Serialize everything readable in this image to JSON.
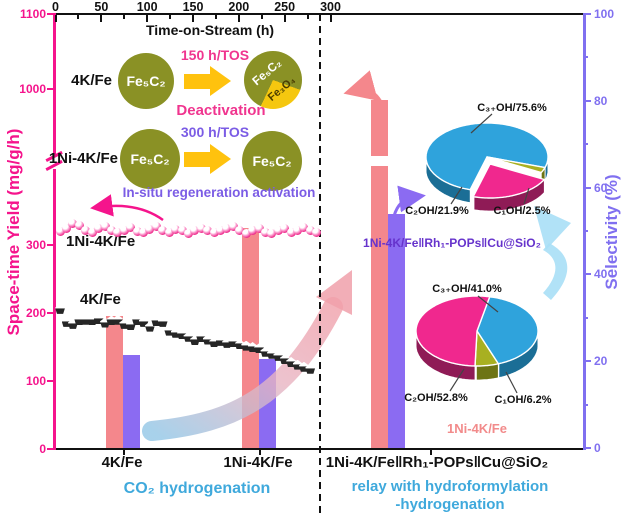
{
  "captions": {
    "co2": "CO₂ hydrogenation",
    "relay_line1": "relay with hydroformylation",
    "relay_line2": "-hydrogenation",
    "caption_color": "#3FA9DC"
  },
  "inset": {
    "rows": [
      {
        "catalyst": "4K/Fe",
        "phase_start": "Fe₅C₂",
        "tos": "150 h/TOS",
        "caption": "Deactivation",
        "phase_end": "Fe₅C₂",
        "phase_end_minor": "Fe₃O₄",
        "accent": "#F0358F"
      },
      {
        "catalyst": "1Ni-4K/Fe",
        "phase_start": "Fe₅C₂",
        "tos": "300 h/TOS",
        "caption": "In-situ regeneration activation",
        "phase_end": "Fe₅C₂",
        "accent": "#7B5CE5"
      }
    ],
    "particle_color": "#8A9125",
    "arrow_color": "#FFC20E"
  },
  "chart_data": {
    "type": "composite",
    "left_axis": {
      "title": "Space-time Yield (mg/g/h)",
      "color": "#F5148C",
      "ticks": [
        0,
        100,
        200,
        300,
        1000,
        1100
      ],
      "break_between": [
        300,
        1000
      ]
    },
    "right_axis": {
      "title": "Selectivity (%)",
      "color": "#8070F0",
      "ticks": [
        0,
        20,
        40,
        60,
        80,
        100
      ]
    },
    "top_axis": {
      "title": "Time-on-Stream (h)",
      "ticks": [
        0,
        50,
        100,
        150,
        200,
        250,
        300
      ]
    },
    "scatter": [
      {
        "name": "1Ni-4K/Fe",
        "marker": "pink-sphere",
        "axis": "left",
        "t_h": [
          5,
          12,
          19,
          26,
          33,
          40,
          47,
          54,
          61,
          68,
          75,
          82,
          89,
          96,
          103,
          110,
          117,
          124,
          131,
          138,
          145,
          152,
          159,
          166,
          173,
          180,
          187,
          194,
          201,
          208,
          215,
          222,
          229,
          236,
          243,
          250,
          257,
          264,
          271,
          278,
          285
        ],
        "sty": [
          320,
          325,
          331,
          328,
          322,
          319,
          324,
          327,
          322,
          318,
          322,
          326,
          320,
          318,
          323,
          327,
          321,
          318,
          323,
          321,
          317,
          321,
          325,
          322,
          318,
          321,
          324,
          327,
          321,
          317,
          321,
          325,
          319,
          317,
          321,
          325,
          319,
          322,
          326,
          322,
          319
        ]
      },
      {
        "name": "4K/Fe",
        "marker": "black-pentagon",
        "axis": "left",
        "t_h": [
          5,
          12,
          19,
          26,
          33,
          40,
          47,
          54,
          61,
          68,
          75,
          82,
          89,
          96,
          103,
          110,
          117,
          124,
          131,
          138,
          145,
          152,
          159,
          166,
          173,
          180,
          187,
          194,
          201,
          208,
          215,
          222,
          229,
          236,
          243,
          250,
          257,
          264,
          271,
          278
        ],
        "sty": [
          206,
          187,
          184,
          189,
          190,
          189,
          191,
          186,
          189,
          190,
          184,
          182,
          189,
          187,
          180,
          188,
          187,
          174,
          171,
          169,
          165,
          160,
          164,
          161,
          157,
          159,
          156,
          157,
          154,
          152,
          150,
          148,
          143,
          140,
          137,
          132,
          128,
          124,
          121,
          118
        ]
      }
    ],
    "bars": {
      "categories": [
        "4K/Fe",
        "1Ni-4K/Fe",
        "1Ni-4K/Fe‖Rh₁-POPs‖Cu@SiO₂"
      ],
      "series": [
        {
          "name": "Space-time Yield",
          "axis": "left",
          "color": "#F4878C",
          "values": [
            195,
            325,
            985
          ]
        },
        {
          "name": "Selectivity",
          "axis": "right",
          "color": "#8B6BF2",
          "values": [
            21.5,
            20.5,
            54
          ]
        }
      ]
    },
    "pies": [
      {
        "title": "1Ni-4K/Fe‖Rh₁-POPs‖Cu@SiO₂",
        "title_color": "#6633CC",
        "slices": [
          {
            "label": "C₃₊OH/75.6%",
            "value": 75.6,
            "color": "#2FA3DC"
          },
          {
            "label": "C₁OH/2.5%",
            "value": 2.5,
            "color": "#A8B021"
          },
          {
            "label": "C₂OH/21.9%",
            "value": 21.9,
            "color": "#F0288E"
          }
        ]
      },
      {
        "title": "1Ni-4K/Fe",
        "title_color": "#F28B8B",
        "slices": [
          {
            "label": "C₃₊OH/41.0%",
            "value": 41.0,
            "color": "#2FA3DC"
          },
          {
            "label": "C₁OH/6.2%",
            "value": 6.2,
            "color": "#A8B021"
          },
          {
            "label": "C₂OH/52.8%",
            "value": 52.8,
            "color": "#F0288E"
          }
        ]
      }
    ]
  }
}
